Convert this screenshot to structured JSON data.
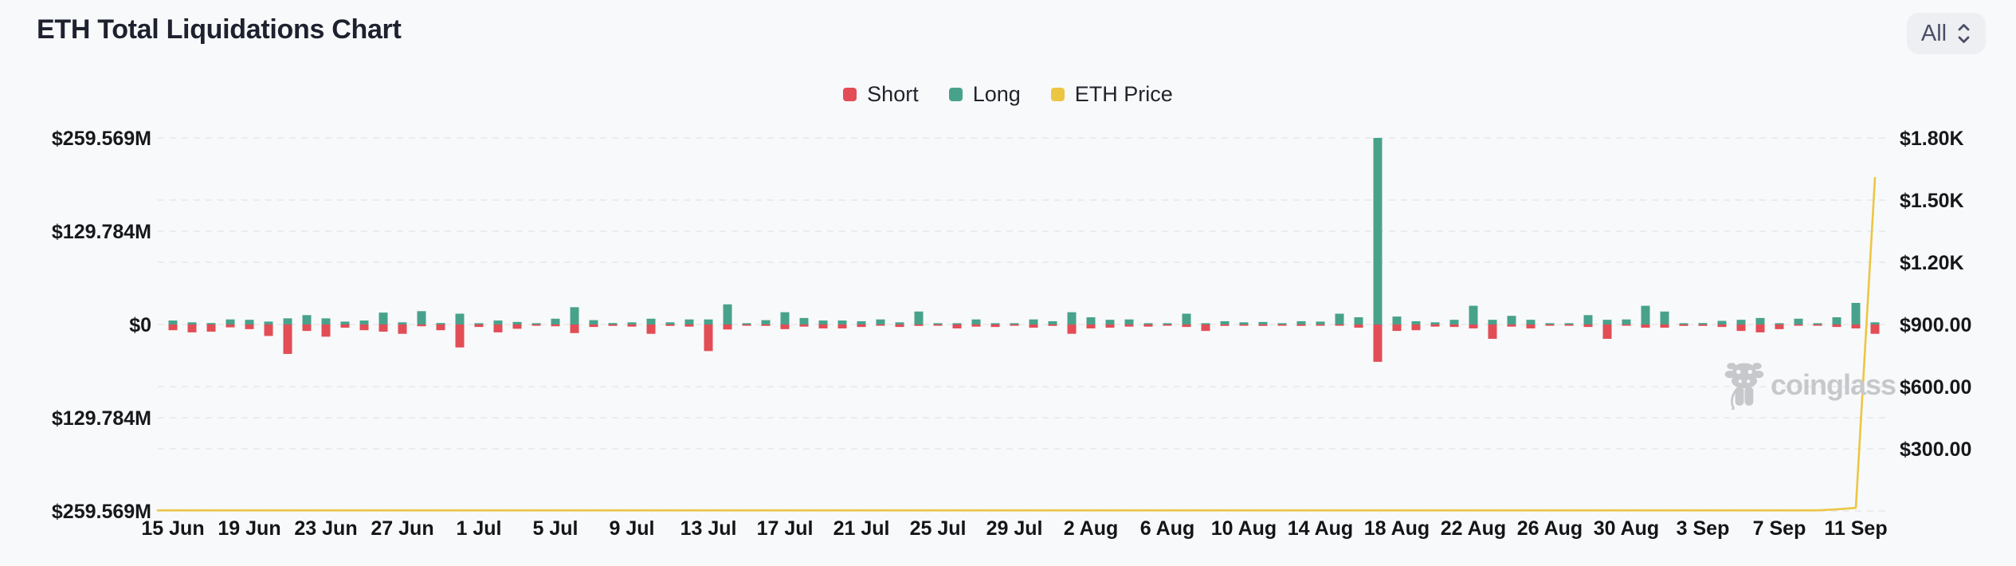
{
  "header": {
    "title": "ETH Total Liquidations Chart",
    "range_selector": {
      "value": "All"
    }
  },
  "legend": [
    {
      "label": "Short",
      "color": "#e24d56"
    },
    {
      "label": "Long",
      "color": "#48a28b"
    },
    {
      "label": "ETH Price",
      "color": "#ecc643"
    }
  ],
  "watermark": {
    "label": "coinglass"
  },
  "chart_data": {
    "type": "bar",
    "title": "ETH Total Liquidations Chart",
    "legend_position": "top-center",
    "grid": true,
    "left_axis": {
      "labels": [
        "$259.569M",
        "$129.784M",
        "$0",
        "$129.784M",
        "$259.569M"
      ],
      "unit": "USD liquidations, mirrored axis: Long up / Short down",
      "ylim_m": [
        -259.569,
        259.569
      ]
    },
    "right_axis": {
      "labels": [
        "$1.80K",
        "$1.50K",
        "$1.20K",
        "$900.00",
        "$600.00",
        "$300.00"
      ],
      "unit": "ETH price USD",
      "ylim": [
        0,
        1800
      ]
    },
    "x_tick_labels": [
      "15 Jun",
      "19 Jun",
      "23 Jun",
      "27 Jun",
      "1 Jul",
      "5 Jul",
      "9 Jul",
      "13 Jul",
      "17 Jul",
      "21 Jul",
      "25 Jul",
      "29 Jul",
      "2 Aug",
      "6 Aug",
      "10 Aug",
      "14 Aug",
      "18 Aug",
      "22 Aug",
      "26 Aug",
      "30 Aug",
      "3 Sep",
      "7 Sep",
      "11 Sep"
    ],
    "x": [
      "15 Jun",
      "16 Jun",
      "17 Jun",
      "18 Jun",
      "19 Jun",
      "20 Jun",
      "21 Jun",
      "22 Jun",
      "23 Jun",
      "24 Jun",
      "25 Jun",
      "26 Jun",
      "27 Jun",
      "28 Jun",
      "29 Jun",
      "30 Jun",
      "1 Jul",
      "2 Jul",
      "3 Jul",
      "4 Jul",
      "5 Jul",
      "6 Jul",
      "7 Jul",
      "8 Jul",
      "9 Jul",
      "10 Jul",
      "11 Jul",
      "12 Jul",
      "13 Jul",
      "14 Jul",
      "15 Jul",
      "16 Jul",
      "17 Jul",
      "18 Jul",
      "19 Jul",
      "20 Jul",
      "21 Jul",
      "22 Jul",
      "23 Jul",
      "24 Jul",
      "25 Jul",
      "26 Jul",
      "27 Jul",
      "28 Jul",
      "29 Jul",
      "30 Jul",
      "31 Jul",
      "1 Aug",
      "2 Aug",
      "3 Aug",
      "4 Aug",
      "5 Aug",
      "6 Aug",
      "7 Aug",
      "8 Aug",
      "9 Aug",
      "10 Aug",
      "11 Aug",
      "12 Aug",
      "13 Aug",
      "14 Aug",
      "15 Aug",
      "16 Aug",
      "17 Aug",
      "18 Aug",
      "19 Aug",
      "20 Aug",
      "21 Aug",
      "22 Aug",
      "23 Aug",
      "24 Aug",
      "25 Aug",
      "26 Aug",
      "27 Aug",
      "28 Aug",
      "29 Aug",
      "30 Aug",
      "31 Aug",
      "1 Sep",
      "2 Sep",
      "3 Sep",
      "4 Sep",
      "5 Sep",
      "6 Sep",
      "7 Sep",
      "8 Sep",
      "9 Sep",
      "10 Sep",
      "11 Sep",
      "12 Sep"
    ],
    "series": [
      {
        "name": "Short",
        "type": "bar",
        "direction": "down",
        "color": "#e24d56",
        "unit": "$M",
        "values": [
          8,
          11,
          10,
          4,
          6.5,
          16,
          41,
          9,
          17,
          4.5,
          8,
          10,
          13,
          2.5,
          8,
          32,
          3.5,
          11,
          6,
          1.5,
          2.5,
          12,
          3.5,
          2,
          3,
          13,
          2,
          3,
          37,
          7,
          1,
          2,
          6.5,
          3,
          5.5,
          5.5,
          3.5,
          1,
          3.5,
          2,
          1.5,
          5.5,
          3,
          3.5,
          1.5,
          4.5,
          2,
          13,
          5.5,
          4.5,
          3,
          3,
          0.5,
          3.5,
          9,
          2,
          1,
          2,
          1,
          2,
          1,
          1.5,
          4.5,
          52,
          9,
          8,
          3,
          3.5,
          5.5,
          20,
          3,
          5.5,
          1,
          1,
          3.5,
          20,
          1,
          4.5,
          4.5,
          2,
          2,
          3.5,
          9,
          11,
          6.5,
          1,
          1,
          3.5,
          5.5,
          13
        ]
      },
      {
        "name": "Long",
        "type": "bar",
        "direction": "up",
        "color": "#48a28b",
        "unit": "$M",
        "values": [
          5.5,
          3,
          2,
          7,
          6.5,
          4,
          8.5,
          13,
          8.5,
          4,
          5.5,
          16.5,
          3,
          18.5,
          2,
          15,
          1,
          5.5,
          3.5,
          1.5,
          8,
          24,
          6,
          2,
          3,
          8,
          3,
          7,
          7,
          28,
          1,
          6,
          17,
          9,
          5.5,
          5.5,
          4.5,
          7,
          3,
          18,
          0.5,
          1,
          7,
          1,
          0.5,
          7,
          4.5,
          17,
          10,
          6.5,
          7,
          1,
          1.5,
          15,
          1,
          4.5,
          3,
          3.5,
          0.5,
          4.5,
          4,
          15,
          10,
          259.569,
          11,
          4.5,
          3,
          6.5,
          26,
          6.5,
          12,
          6.5,
          1,
          0.5,
          13,
          6.5,
          7,
          26,
          18,
          0.5,
          2,
          5,
          6.5,
          9,
          1,
          8,
          1,
          10,
          30,
          3
        ]
      },
      {
        "name": "ETH Price",
        "type": "line",
        "axis": "right",
        "color": "#ecc643",
        "unit": "$",
        "values": [
          3,
          3,
          3,
          3,
          3,
          3,
          3,
          3,
          3,
          3,
          3,
          3,
          3,
          3,
          3,
          3,
          3,
          3,
          3,
          3,
          3,
          3,
          3,
          3,
          3,
          3,
          3,
          3,
          3,
          3,
          3,
          3,
          3,
          3,
          3,
          3,
          3,
          3,
          3,
          3,
          3,
          3,
          3,
          3,
          3,
          3,
          3,
          3,
          3,
          3,
          3,
          3,
          3,
          3,
          3,
          3,
          3,
          3,
          3,
          3,
          3,
          3,
          3,
          3,
          3,
          3,
          3,
          3,
          3,
          3,
          3,
          3,
          3,
          3,
          3,
          3,
          3,
          3,
          3,
          3,
          3,
          3,
          3,
          3,
          3,
          3,
          3,
          8,
          15,
          1607
        ]
      }
    ]
  }
}
